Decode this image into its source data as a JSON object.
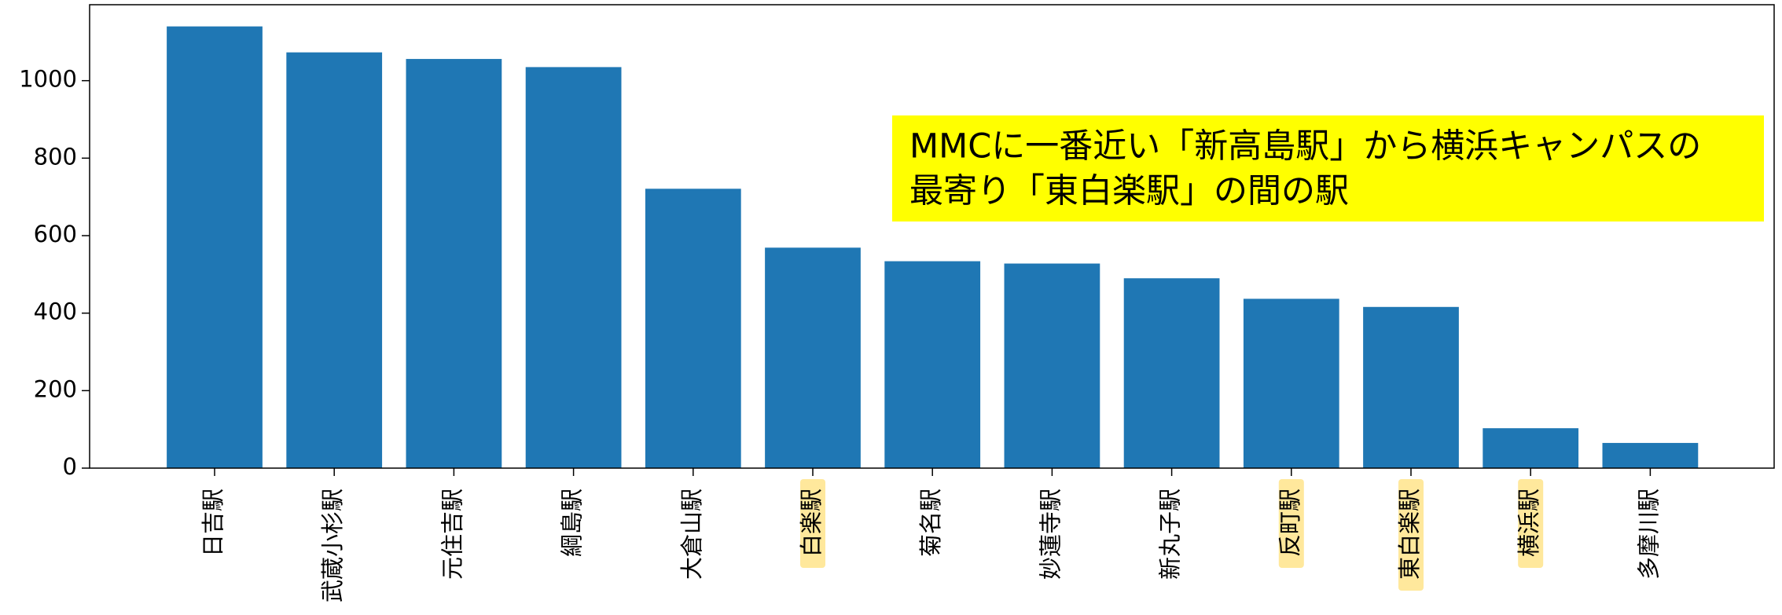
{
  "chart_data": {
    "type": "bar",
    "categories": [
      "日吉駅",
      "武蔵小杉駅",
      "元住吉駅",
      "綱島駅",
      "大倉山駅",
      "白楽駅",
      "菊名駅",
      "妙蓮寺駅",
      "新丸子駅",
      "反町駅",
      "東白楽駅",
      "横浜駅",
      "多摩川駅"
    ],
    "values": [
      1140,
      1073,
      1056,
      1035,
      721,
      569,
      534,
      528,
      490,
      437,
      416,
      103,
      65
    ],
    "color": "#1f77b4",
    "ylim": [
      0,
      1196
    ],
    "yticks": [
      0,
      200,
      400,
      600,
      800,
      1000
    ],
    "annotation": [
      "MMCに一番近い「新高島駅」から横浜キャンパスの",
      "最寄り「東白楽駅」の間の駅"
    ]
  }
}
